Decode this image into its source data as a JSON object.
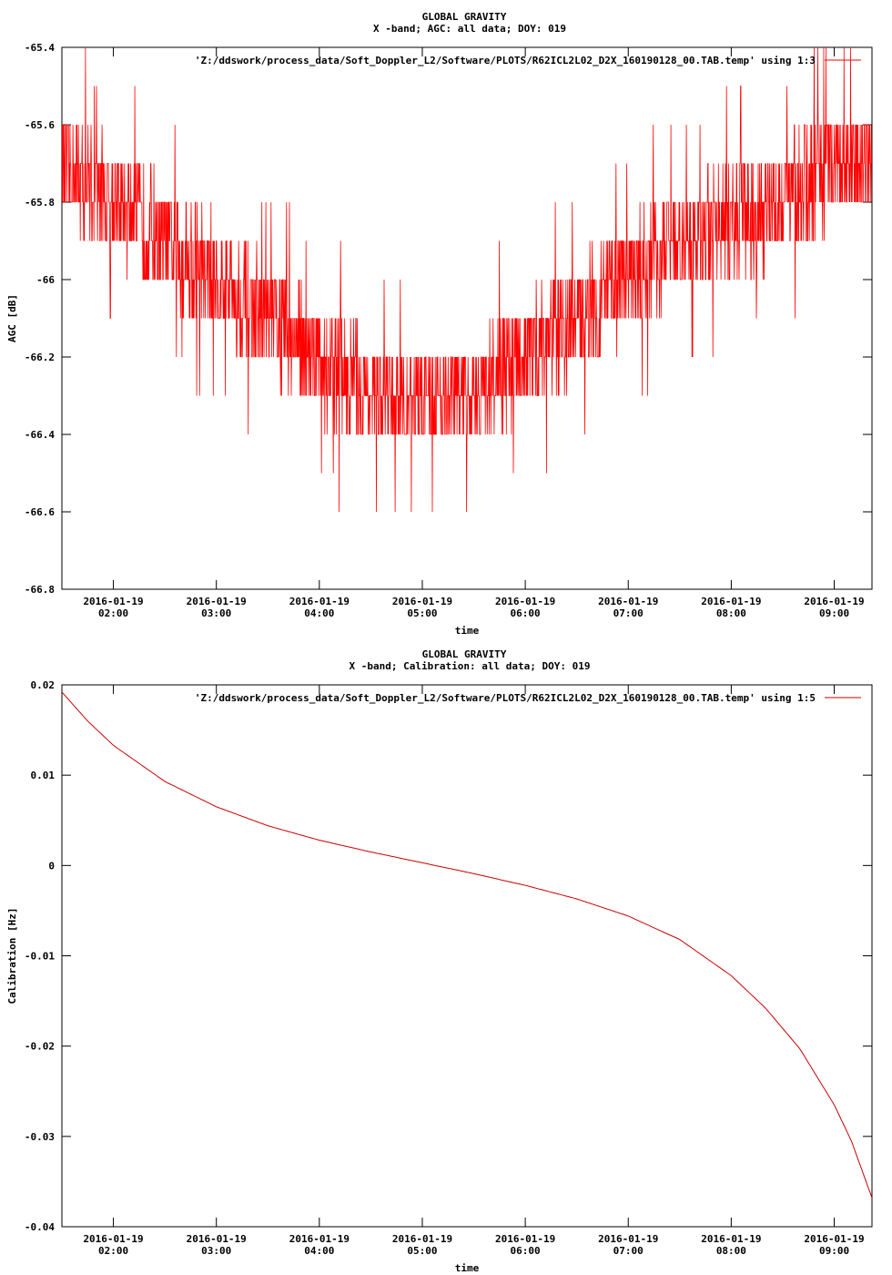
{
  "chart_data": [
    {
      "type": "line",
      "title": "GLOBAL GRAVITY",
      "subtitle": "X -band; AGC: all data; DOY: 019",
      "xlabel": "time",
      "ylabel": "AGC [dB]",
      "ylim": [
        -66.8,
        -65.4
      ],
      "yticks": [
        -65.4,
        -65.6,
        -65.8,
        -66,
        -66.2,
        -66.4,
        -66.6,
        -66.8
      ],
      "ytick_labels": [
        "-65.4",
        "-65.6",
        "-65.8",
        "-66",
        "-66.2",
        "-66.4",
        "-66.6",
        "-66.8"
      ],
      "xlim": [
        "2016-01-19 01:30",
        "2016-01-19 09:22"
      ],
      "xticks": [
        "2016-01-19 02:00",
        "2016-01-19 03:00",
        "2016-01-19 04:00",
        "2016-01-19 05:00",
        "2016-01-19 06:00",
        "2016-01-19 07:00",
        "2016-01-19 08:00",
        "2016-01-19 09:00"
      ],
      "xtick_labels": [
        [
          "2016-01-19",
          "02:00"
        ],
        [
          "2016-01-19",
          "03:00"
        ],
        [
          "2016-01-19",
          "04:00"
        ],
        [
          "2016-01-19",
          "05:00"
        ],
        [
          "2016-01-19",
          "06:00"
        ],
        [
          "2016-01-19",
          "07:00"
        ],
        [
          "2016-01-19",
          "08:00"
        ],
        [
          "2016-01-19",
          "09:00"
        ]
      ],
      "grid": false,
      "legend_position": "top-right",
      "color": "#ff0000",
      "series": [
        {
          "name": "'Z:/ddswork/process_data/Soft_Doppler_L2/Software/PLOTS/R62ICL2L02_D2X_160190128_00.TAB.temp' using 1:3",
          "x": [
            "2016-01-19 01:30",
            "2016-01-19 02:00",
            "2016-01-19 02:30",
            "2016-01-19 03:00",
            "2016-01-19 03:30",
            "2016-01-19 04:00",
            "2016-01-19 04:30",
            "2016-01-19 05:00",
            "2016-01-19 05:30",
            "2016-01-19 06:00",
            "2016-01-19 06:30",
            "2016-01-19 07:00",
            "2016-01-19 07:30",
            "2016-01-19 08:00",
            "2016-01-19 08:30",
            "2016-01-19 09:00",
            "2016-01-19 09:22"
          ],
          "y": [
            -65.7,
            -65.8,
            -65.9,
            -66.0,
            -66.1,
            -66.2,
            -66.3,
            -66.3,
            -66.3,
            -66.2,
            -66.1,
            -66.0,
            -65.9,
            -65.85,
            -65.8,
            -65.7,
            -65.7
          ],
          "noise": 0.12
        }
      ]
    },
    {
      "type": "line",
      "title": "GLOBAL GRAVITY",
      "subtitle": "X -band; Calibration: all data; DOY: 019",
      "xlabel": "time",
      "ylabel": "Calibration [Hz]",
      "ylim": [
        -0.04,
        0.02
      ],
      "yticks": [
        0.02,
        0.01,
        0,
        -0.01,
        -0.02,
        -0.03,
        -0.04
      ],
      "ytick_labels": [
        "0.02",
        "0.01",
        "0",
        "-0.01",
        "-0.02",
        "-0.03",
        "-0.04"
      ],
      "xlim": [
        "2016-01-19 01:30",
        "2016-01-19 09:22"
      ],
      "xticks": [
        "2016-01-19 02:00",
        "2016-01-19 03:00",
        "2016-01-19 04:00",
        "2016-01-19 05:00",
        "2016-01-19 06:00",
        "2016-01-19 07:00",
        "2016-01-19 08:00",
        "2016-01-19 09:00"
      ],
      "xtick_labels": [
        [
          "2016-01-19",
          "02:00"
        ],
        [
          "2016-01-19",
          "03:00"
        ],
        [
          "2016-01-19",
          "04:00"
        ],
        [
          "2016-01-19",
          "05:00"
        ],
        [
          "2016-01-19",
          "06:00"
        ],
        [
          "2016-01-19",
          "07:00"
        ],
        [
          "2016-01-19",
          "08:00"
        ],
        [
          "2016-01-19",
          "09:00"
        ]
      ],
      "grid": false,
      "legend_position": "top-right",
      "color": "#cc0000",
      "series": [
        {
          "name": "'Z:/ddswork/process_data/Soft_Doppler_L2/Software/PLOTS/R62ICL2L02_D2X_160190128_00.TAB.temp' using 1:5",
          "x": [
            "2016-01-19 01:30",
            "2016-01-19 01:45",
            "2016-01-19 02:00",
            "2016-01-19 02:30",
            "2016-01-19 03:00",
            "2016-01-19 03:30",
            "2016-01-19 04:00",
            "2016-01-19 04:30",
            "2016-01-19 05:00",
            "2016-01-19 05:30",
            "2016-01-19 06:00",
            "2016-01-19 06:30",
            "2016-01-19 07:00",
            "2016-01-19 07:30",
            "2016-01-19 08:00",
            "2016-01-19 08:20",
            "2016-01-19 08:40",
            "2016-01-19 09:00",
            "2016-01-19 09:10",
            "2016-01-19 09:22"
          ],
          "y": [
            0.0192,
            0.016,
            0.0133,
            0.0093,
            0.0065,
            0.0044,
            0.0028,
            0.0015,
            0.0003,
            -0.0009,
            -0.0022,
            -0.0037,
            -0.0056,
            -0.0082,
            -0.0122,
            -0.0158,
            -0.0203,
            -0.0265,
            -0.0305,
            -0.0368
          ]
        }
      ]
    }
  ]
}
